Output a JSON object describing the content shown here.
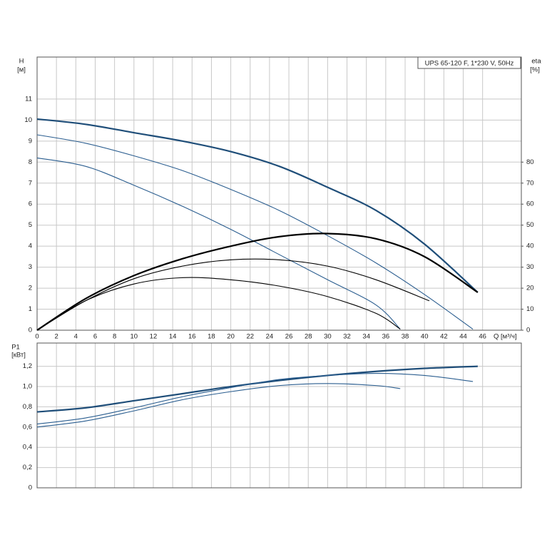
{
  "chart_data": [
    {
      "type": "line",
      "title": "UPS 65-120 F, 1*230 V, 50Hz",
      "ylabel": "H",
      "yunit": "[м]",
      "y2label": "eta",
      "y2unit": "[%]",
      "xlabel": "Q [м³/ч]",
      "xlim": [
        0,
        50
      ],
      "xticks": [
        0,
        2,
        4,
        6,
        8,
        10,
        12,
        14,
        16,
        18,
        20,
        22,
        24,
        26,
        28,
        30,
        32,
        34,
        36,
        38,
        40,
        42,
        44,
        46
      ],
      "ylim": [
        0,
        13
      ],
      "yticks": [
        0,
        1,
        2,
        3,
        4,
        5,
        6,
        7,
        8,
        9,
        10,
        11
      ],
      "y2lim": [
        0,
        130
      ],
      "y2ticks": [
        0,
        10,
        20,
        30,
        40,
        50,
        60,
        70,
        80
      ],
      "grid": true,
      "series": [
        {
          "color": "#1f4e79",
          "line_width": 2.2,
          "x": [
            0,
            5,
            10,
            15,
            20,
            25,
            30,
            35,
            40,
            45.5
          ],
          "values": [
            10.05,
            9.8,
            9.4,
            9.0,
            8.5,
            7.8,
            6.8,
            5.7,
            4.1,
            1.8
          ]
        },
        {
          "color": "#2a5d8f",
          "line_width": 1.1,
          "x": [
            0,
            5,
            10,
            15,
            20,
            25,
            30,
            35,
            40,
            45
          ],
          "values": [
            9.3,
            8.9,
            8.3,
            7.6,
            6.7,
            5.7,
            4.5,
            3.2,
            1.7,
            0.05
          ]
        },
        {
          "color": "#2a5d8f",
          "line_width": 1.1,
          "x": [
            0,
            5,
            10,
            15,
            20,
            25,
            30,
            35,
            37.5
          ],
          "values": [
            8.2,
            7.8,
            6.9,
            5.9,
            4.8,
            3.6,
            2.4,
            1.2,
            0.05
          ]
        },
        {
          "color": "#000000",
          "line_width": 2.2,
          "axis": "y2",
          "x": [
            0,
            5,
            10,
            15,
            20,
            25,
            30,
            35,
            40,
            45.5
          ],
          "values": [
            0,
            15,
            26,
            34,
            40,
            44.5,
            46,
            43.5,
            35,
            18
          ]
        },
        {
          "color": "#000000",
          "line_width": 1.1,
          "axis": "y2",
          "x": [
            0,
            5,
            10,
            15,
            20,
            25,
            30,
            35,
            40.5
          ],
          "values": [
            0,
            14,
            24.5,
            30.5,
            33.5,
            33.5,
            30.5,
            24,
            14
          ]
        },
        {
          "color": "#000000",
          "line_width": 1.1,
          "axis": "y2",
          "x": [
            0,
            5,
            10,
            15,
            20,
            25,
            30,
            35,
            37.5
          ],
          "values": [
            0,
            14,
            22,
            25,
            24,
            21,
            16,
            8,
            0.5
          ]
        }
      ]
    },
    {
      "type": "line",
      "ylabel": "P1",
      "yunit": "[кВт]",
      "xlim": [
        0,
        50
      ],
      "ylim": [
        0,
        1.43
      ],
      "yticks": [
        0,
        {
          "value": 0.2,
          "label": "0,2"
        },
        {
          "value": 0.4,
          "label": "0,4"
        },
        {
          "value": 0.6,
          "label": "0,6"
        },
        {
          "value": 0.8,
          "label": "0,8"
        },
        {
          "value": 1.0,
          "label": "1,0"
        },
        {
          "value": 1.2,
          "label": "1,2"
        }
      ],
      "grid": true,
      "series": [
        {
          "color": "#1f4e79",
          "line_width": 2.2,
          "x": [
            0,
            5,
            10,
            15,
            20,
            25,
            30,
            35,
            40,
            45.5
          ],
          "values": [
            0.75,
            0.79,
            0.86,
            0.93,
            1.0,
            1.06,
            1.11,
            1.15,
            1.18,
            1.2
          ]
        },
        {
          "color": "#2a5d8f",
          "line_width": 1.1,
          "x": [
            0,
            5,
            10,
            15,
            20,
            25,
            30,
            35,
            40,
            45
          ],
          "values": [
            0.63,
            0.69,
            0.79,
            0.9,
            0.99,
            1.07,
            1.11,
            1.13,
            1.11,
            1.05
          ]
        },
        {
          "color": "#2a5d8f",
          "line_width": 1.1,
          "x": [
            0,
            5,
            10,
            15,
            20,
            25,
            30,
            35,
            37.5
          ],
          "values": [
            0.6,
            0.66,
            0.76,
            0.87,
            0.95,
            1.01,
            1.03,
            1.01,
            0.98
          ]
        }
      ]
    }
  ]
}
